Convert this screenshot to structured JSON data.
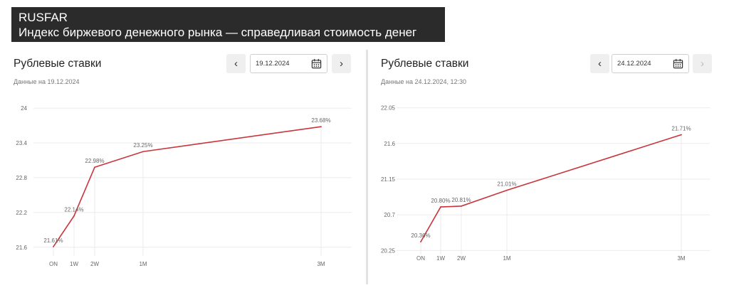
{
  "header": {
    "title": "RUSFAR",
    "subtitle": "Индекс биржевого денежного рынка — справедливая стоимость денег"
  },
  "panels": [
    {
      "title": "Рублевые ставки",
      "date": "19.12.2024",
      "subtitle": "Данные на 19.12.2024",
      "next_disabled": false
    },
    {
      "title": "Рублевые ставки",
      "date": "24.12.2024",
      "subtitle": "Данные на 24.12.2024, 12:30",
      "next_disabled": true
    }
  ],
  "colors": {
    "line": "#c8353a",
    "grid": "#ebebeb",
    "label": "#666666"
  },
  "icons": {
    "prev": "chevron-left-icon",
    "next": "chevron-right-icon",
    "calendar": "calendar-icon"
  },
  "chart_data": [
    {
      "type": "line",
      "categories": [
        "ON",
        "1W",
        "2W",
        "1M",
        "3M"
      ],
      "x": [
        1,
        7,
        14,
        30,
        91
      ],
      "values": [
        21.61,
        22.14,
        22.98,
        23.25,
        23.68
      ],
      "value_labels": [
        "21.61%",
        "22.14%",
        "22.98%",
        "23.25%",
        "23.68%"
      ],
      "yticks": [
        "21.6",
        "22.2",
        "22.8",
        "23.4",
        "24"
      ],
      "ylim": [
        21.45,
        24.05
      ],
      "grid": true
    },
    {
      "type": "line",
      "categories": [
        "ON",
        "1W",
        "2W",
        "1M",
        "3M"
      ],
      "x": [
        1,
        7,
        14,
        30,
        91
      ],
      "values": [
        20.36,
        20.8,
        20.81,
        21.01,
        21.71
      ],
      "value_labels": [
        "20.36%",
        "20.80%",
        "20.81%",
        "21.01%",
        "21.71%"
      ],
      "yticks": [
        "20.25",
        "20.7",
        "21.15",
        "21.6",
        "22.05"
      ],
      "ylim": [
        20.2,
        22.1
      ],
      "grid": true
    }
  ]
}
